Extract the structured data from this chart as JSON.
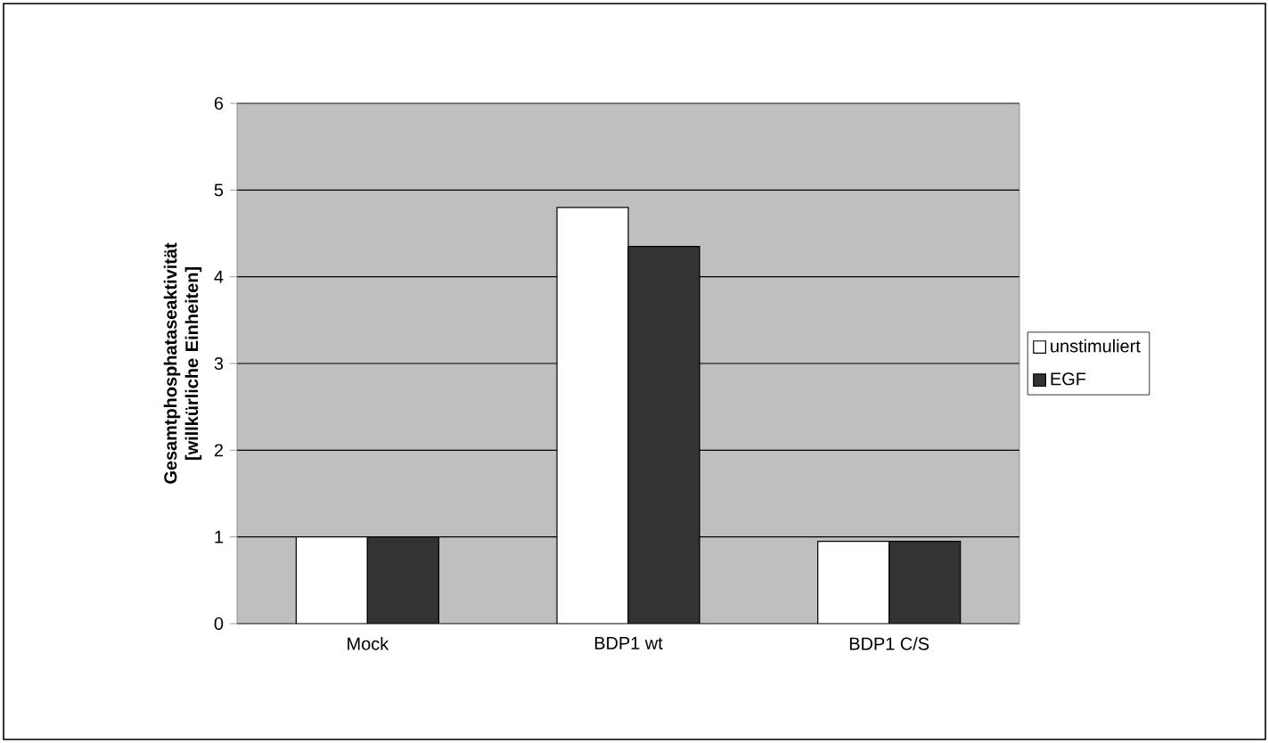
{
  "chart_data": {
    "type": "bar",
    "ylabel": "Gesamtphosphataseaktivität [willkürliche Einheiten]",
    "categories": [
      "Mock",
      "BDP1 wt",
      "BDP1 C/S"
    ],
    "series": [
      {
        "name": "unstimuliert",
        "color": "#ffffff",
        "values": [
          1.0,
          4.8,
          0.95
        ]
      },
      {
        "name": "EGF",
        "color": "#333333",
        "values": [
          1.0,
          4.35,
          0.95
        ]
      }
    ],
    "ylim": [
      0,
      6
    ],
    "yticks": [
      0,
      1,
      2,
      3,
      4,
      5,
      6
    ],
    "grid": "y",
    "legend": "right"
  }
}
